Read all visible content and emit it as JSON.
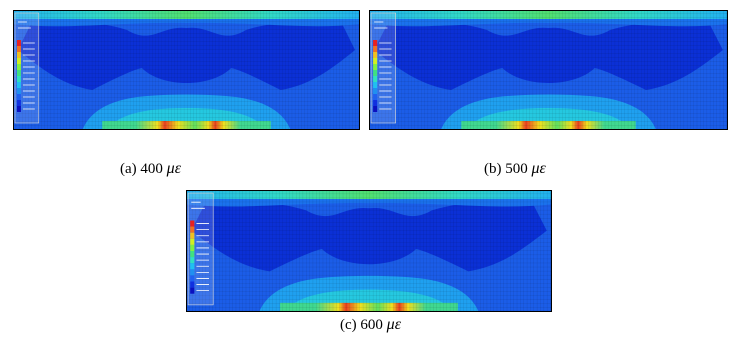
{
  "figures": [
    {
      "label": "(a) 400",
      "unit": "με"
    },
    {
      "label": "(b) 500",
      "unit": "με"
    },
    {
      "label": "(c) 600",
      "unit": "με"
    }
  ]
}
